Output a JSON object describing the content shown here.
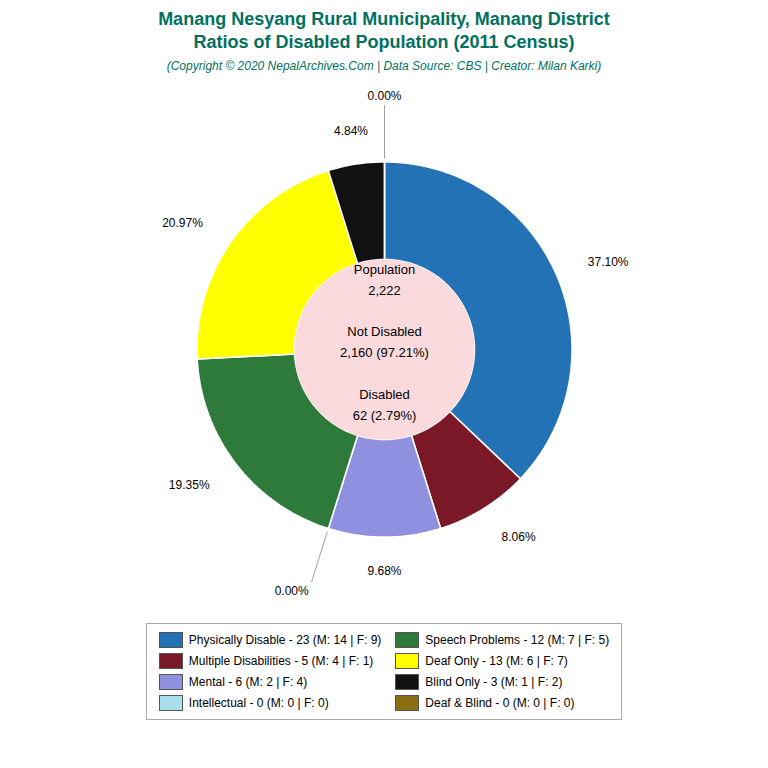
{
  "chart_data": {
    "type": "pie",
    "title": "Manang Nesyang Rural Municipality, Manang District\nRatios of Disabled Population (2011 Census)",
    "subtitle": "(Copyright © 2020 NepalArchives.Com | Data Source: CBS | Creator: Milan Karki)",
    "categories": [
      "Physically Disable - 23 (M: 14 | F: 9)",
      "Multiple Disabilities - 5 (M: 4 | F: 1)",
      "Mental - 6 (M: 2 | F: 4)",
      "Intellectual - 0 (M: 0 | F: 0)",
      "Speech Problems - 12 (M: 7 | F: 5)",
      "Deaf Only - 13 (M: 6 | F: 7)",
      "Blind Only - 3 (M: 1 | F: 2)",
      "Deaf & Blind - 0 (M: 0 | F: 0)"
    ],
    "values": [
      37.1,
      8.06,
      9.68,
      0,
      19.35,
      20.97,
      4.84,
      0
    ],
    "value_labels": [
      "37.10%",
      "8.06%",
      "9.68%",
      "0.00%",
      "19.35%",
      "20.97%",
      "4.84%",
      "0.00%"
    ],
    "colors": [
      "#2272b5",
      "#7b1828",
      "#9090e0",
      "#aae0ee",
      "#2d7a3a",
      "#ffff00",
      "#111111",
      "#8b6d14"
    ],
    "data_labels": true,
    "annotation": "Population\n2,222\n\nNot Disabled\n2,160 (97.21%)\n\nDisabled\n62 (2.79%)",
    "legend": "bottom",
    "grid": false,
    "tick_labels": false
  }
}
